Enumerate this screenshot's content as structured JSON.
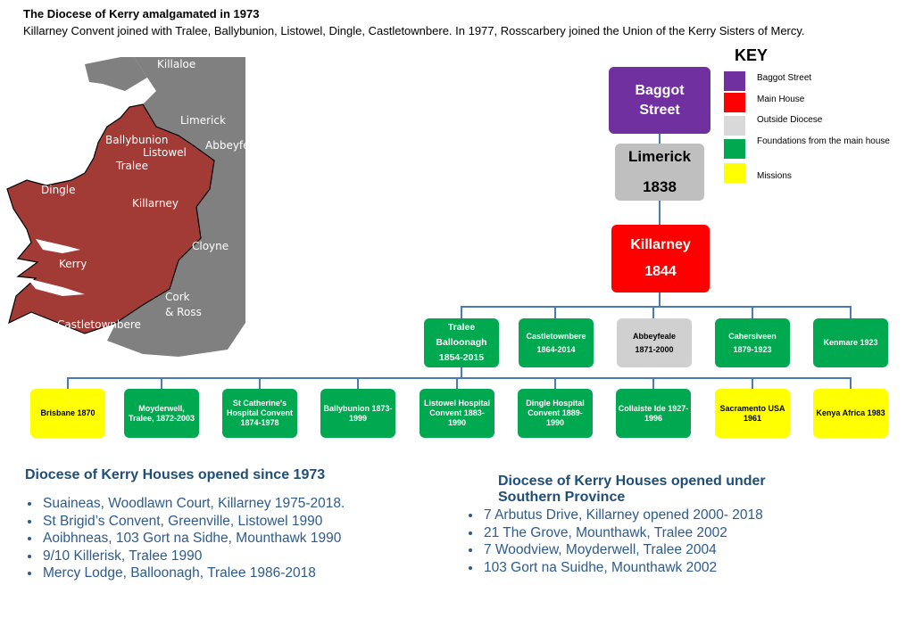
{
  "header": {
    "title": "The Diocese of Kerry amalgamated in 1973",
    "subtitle": "Killarney Convent joined with Tralee, Ballybunion, Listowel, Dingle, Castletownbere. In 1977, Rosscarbery joined the Union of the Kerry Sisters of Mercy."
  },
  "map": {
    "labels": [
      "Killaloe",
      "Limerick",
      "Abbeyfeale",
      "Ballybunion",
      "Listowel",
      "Tralee",
      "Dingle",
      "Killarney",
      "Cloyne",
      "Kerry",
      "Cork",
      "& Ross",
      "Castletownbere"
    ],
    "colors": {
      "diocese": "#a23a35",
      "outside": "#808080"
    }
  },
  "key": {
    "title": "KEY",
    "items": [
      {
        "label": "Baggot Street",
        "color": "#7030a0"
      },
      {
        "label": "Main House",
        "color": "#ff0000"
      },
      {
        "label": "Outside Diocese",
        "color": "#d9d9d9"
      },
      {
        "label": "Foundations from the main house",
        "color": "#00a84f"
      },
      {
        "label": "Missions",
        "color": "#ffff00"
      }
    ]
  },
  "tree": {
    "baggot": {
      "line1": "Baggot",
      "line2": "Street"
    },
    "limerick": {
      "name": "Limerick",
      "year": "1838"
    },
    "killarney": {
      "name": "Killarney",
      "year": "1844"
    },
    "row1": [
      {
        "line1": "Tralee",
        "line2": "Balloonagh",
        "line3": "1854-2015"
      },
      {
        "line1": "Castletownbere",
        "line2": "1864-2014"
      },
      {
        "line1": "Abbeyfeale",
        "line2": "1871-2000"
      },
      {
        "line1": "Cahersiveen",
        "line2": "1879-1923"
      },
      {
        "line1": "Kenmare 1923"
      }
    ],
    "row2": [
      {
        "text": "Brisbane 1870"
      },
      {
        "text": "Moyderwell, Tralee, 1872-2003"
      },
      {
        "text": "St Catherine's Hospital Convent 1874-1978"
      },
      {
        "text": "Ballybunion 1873-1999"
      },
      {
        "text": "Listowel Hospital Convent 1883-1990"
      },
      {
        "text": "Dingle Hospital Convent 1889-1990"
      },
      {
        "text": "Collaiste Ide 1927-1996"
      },
      {
        "text": "Sacramento USA 1961"
      },
      {
        "text": "Kenya  Africa 1983"
      }
    ]
  },
  "lists": {
    "left": {
      "heading": "Diocese of Kerry Houses opened since 1973",
      "items": [
        "Suaineas, Woodlawn Court, Killarney 1975-2018.",
        "St Brigid’s Convent, Greenville, Listowel 1990",
        "Aoibhneas, 103 Gort na Sidhe, Mounthawk 1990",
        "9/10 Killerisk, Tralee 1990",
        "Mercy Lodge, Balloonagh, Tralee 1986-2018"
      ]
    },
    "right": {
      "heading_line1": "Diocese of Kerry Houses opened under",
      "heading_line2": "Southern Province",
      "items": [
        "7 Arbutus Drive, Killarney opened 2000- 2018",
        "21 The Grove, Mounthawk, Tralee 2002",
        "7 Woodview, Moyderwell, Tralee 2004",
        "103 Gort na Suidhe, Mounthawk 2002"
      ]
    }
  }
}
